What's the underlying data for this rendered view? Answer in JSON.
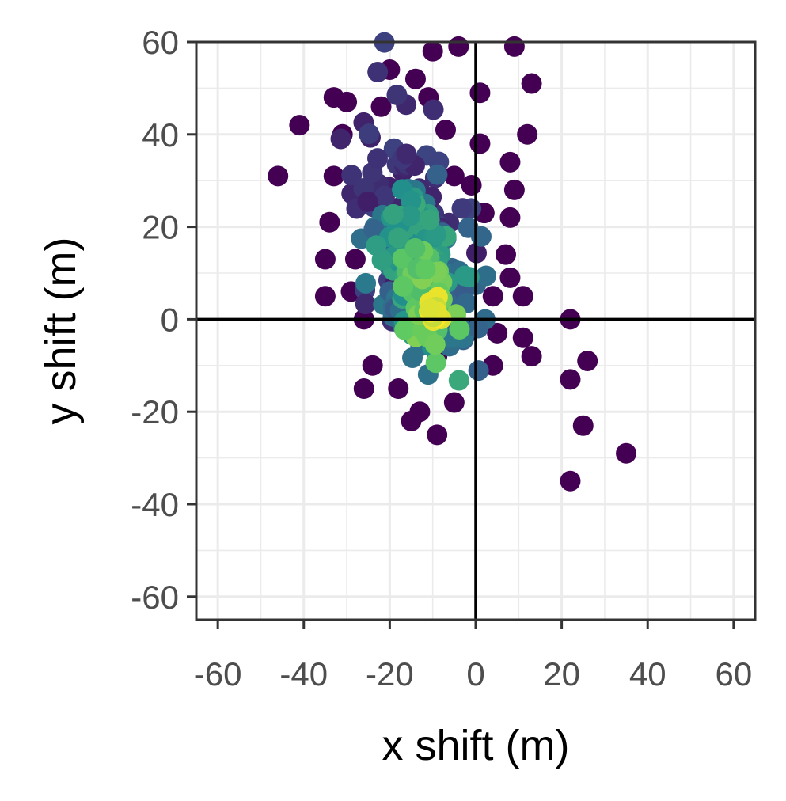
{
  "chart_data": {
    "type": "scatter",
    "title": "",
    "xlabel": "x shift (m)",
    "ylabel": "y shift (m)",
    "xlim": [
      -65,
      65
    ],
    "ylim": [
      -65,
      60
    ],
    "x_ticks": [
      -60,
      -40,
      -20,
      0,
      20,
      40,
      60
    ],
    "y_ticks": [
      -60,
      -40,
      -20,
      0,
      20,
      40,
      60
    ],
    "x_tick_labels": [
      "-60",
      "-40",
      "-20",
      "0",
      "20",
      "40",
      "60"
    ],
    "y_tick_labels": [
      "-60",
      "-40",
      "-20",
      "0",
      "20",
      "40",
      "60"
    ],
    "grid": true,
    "reference_lines": {
      "x": 0,
      "y": 0
    },
    "color_scale": "viridis (point density)",
    "colors": {
      "low_density": "#440154",
      "mid_density": "#21918c",
      "high_density": "#fde725",
      "panel_border": "#333333",
      "grid": "#ebebeb",
      "reference_line": "#000000"
    },
    "outlier_points": [
      [
        -46,
        31
      ],
      [
        -41,
        42
      ],
      [
        -35,
        13
      ],
      [
        -35,
        5
      ],
      [
        -26,
        -15
      ],
      [
        -26,
        0
      ],
      [
        -24,
        -10
      ],
      [
        -10,
        58
      ],
      [
        -4,
        59
      ],
      [
        9,
        59
      ],
      [
        13,
        51
      ],
      [
        1,
        49
      ],
      [
        12,
        40
      ],
      [
        1,
        38
      ],
      [
        8,
        34
      ],
      [
        9,
        28
      ],
      [
        -1,
        29
      ],
      [
        2,
        23
      ],
      [
        8,
        22
      ],
      [
        11,
        5
      ],
      [
        11,
        -4
      ],
      [
        13,
        -8
      ],
      [
        4,
        -10
      ],
      [
        22,
        0
      ],
      [
        22,
        -13
      ],
      [
        26,
        -9
      ],
      [
        25,
        -23
      ],
      [
        22,
        -35
      ],
      [
        35,
        -29
      ],
      [
        -5,
        -18
      ],
      [
        -9,
        -25
      ],
      [
        -15,
        -22
      ],
      [
        -18,
        -15
      ],
      [
        -20,
        54
      ],
      [
        -22,
        46
      ],
      [
        -30,
        47
      ],
      [
        -33,
        48
      ],
      [
        -31,
        40
      ],
      [
        -33,
        31
      ],
      [
        -34,
        21
      ],
      [
        -28,
        13
      ],
      [
        -29,
        6
      ],
      [
        -14,
        52
      ],
      [
        -11,
        48
      ],
      [
        -7,
        41
      ],
      [
        -5,
        31
      ],
      [
        -3,
        24
      ],
      [
        7,
        14
      ],
      [
        8,
        9
      ],
      [
        4,
        5
      ],
      [
        -2,
        -3
      ],
      [
        5,
        -3
      ],
      [
        -9,
        -8
      ],
      [
        -13,
        -20
      ]
    ],
    "density_clusters": [
      {
        "center": [
          -17,
          22
        ],
        "radius_x": 12,
        "radius_y": 22,
        "count": 90,
        "level": 0.15
      },
      {
        "center": [
          -12,
          8
        ],
        "radius_x": 11,
        "radius_y": 18,
        "count": 110,
        "level": 0.35
      },
      {
        "center": [
          -14,
          15
        ],
        "radius_x": 7,
        "radius_y": 14,
        "count": 70,
        "level": 0.55
      },
      {
        "center": [
          -12,
          4
        ],
        "radius_x": 5,
        "radius_y": 10,
        "count": 45,
        "level": 0.75
      },
      {
        "center": [
          -10,
          1
        ],
        "radius_x": 2,
        "radius_y": 3,
        "count": 14,
        "level": 0.97
      }
    ]
  }
}
